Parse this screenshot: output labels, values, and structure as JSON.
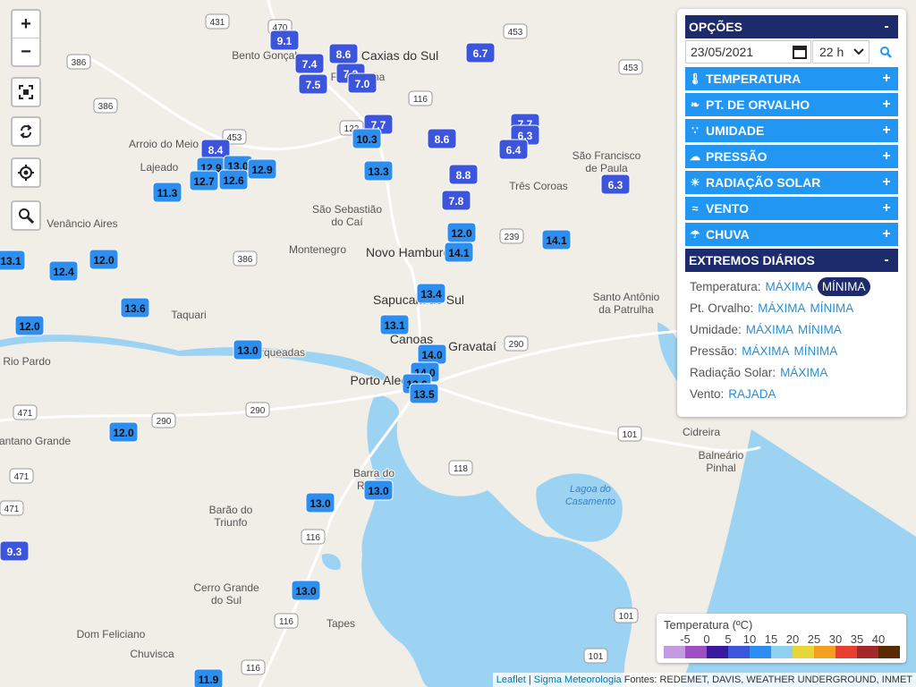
{
  "zoom": {
    "in": "+",
    "out": "−"
  },
  "places": [
    [
      "Bento Gonçalves"
    ],
    [
      "Caxias do Sul"
    ],
    [
      "Farroupilha"
    ],
    [
      "Arroio do Meio"
    ],
    [
      "Lajeado"
    ],
    [
      "Venâncio Aires"
    ],
    [
      "São Sebastião",
      "do Caí"
    ],
    [
      "Montenegro"
    ],
    [
      "Novo Hamburgo"
    ],
    [
      "Sapucaia do Sul"
    ],
    [
      "Taquari"
    ],
    [
      "Canoas"
    ],
    [
      "Gravataí"
    ],
    [
      "Porto Alegre"
    ],
    [
      "Charqueadas"
    ],
    [
      "Rio Pardo"
    ],
    [
      "Pantano Grande"
    ],
    [
      "Barra do",
      "Ribeiro"
    ],
    [
      "Barão do",
      "Triunfo"
    ],
    [
      "Cerro Grande",
      "do Sul"
    ],
    [
      "Tapes"
    ],
    [
      "Dom Feliciano"
    ],
    [
      "Chuvisca"
    ],
    [
      "Três Coroas"
    ],
    [
      "São Francisco",
      "de Paula"
    ],
    [
      "Santo Antônio",
      "da Patrulha"
    ],
    [
      "Cidreira"
    ],
    [
      "Balneário",
      "Pinhal"
    ]
  ],
  "water_labels": [
    [
      "Lagoa do",
      "Casamento"
    ]
  ],
  "roads": [
    "470",
    "431",
    "453",
    "453",
    "453",
    "386",
    "386",
    "386",
    "116",
    "116",
    "116",
    "116",
    "122",
    "239",
    "290",
    "290",
    "290",
    "471",
    "471",
    "471",
    "118",
    "101",
    "101",
    "101"
  ],
  "stations": [
    "9.1",
    "7.4",
    "8.6",
    "7.5",
    "7.3",
    "7.0",
    "6.7",
    "7.7",
    "10.3",
    "8.6",
    "7.7",
    "6.3",
    "6.4",
    "8.4",
    "12.9",
    "13.0",
    "12.9",
    "12.7",
    "12.6",
    "13.3",
    "8.8",
    "11.3",
    "7.8",
    "6.3",
    "12.0",
    "14.1",
    "14.1",
    "13.1",
    "12.0",
    "12.4",
    "13.4",
    "13.6",
    "13.1",
    "12.0",
    "13.0",
    "14.0",
    "14.0",
    "13.6",
    "13.5",
    "12.0",
    "13.0",
    "13.0",
    "9.3",
    "13.0",
    "11.9"
  ],
  "panel": {
    "title": "OPÇÕES",
    "collapse": "-",
    "date": "23/05/2021",
    "hour": "22 h",
    "expand": "+",
    "sections": [
      "TEMPERATURA",
      "PT. DE ORVALHO",
      "UMIDADE",
      "PRESSÃO",
      "RADIAÇÃO SOLAR",
      "VENTO",
      "CHUVA"
    ],
    "extremes": {
      "title": "EXTREMOS DIÁRIOS",
      "rows": [
        {
          "label": "Temperatura:",
          "links": [
            "MÁXIMA",
            "MÍNIMA"
          ]
        },
        {
          "label": "Pt. Orvalho:",
          "links": [
            "MÁXIMA",
            "MÍNIMA"
          ]
        },
        {
          "label": "Umidade:",
          "links": [
            "MÁXIMA",
            "MÍNIMA"
          ]
        },
        {
          "label": "Pressão:",
          "links": [
            "MÁXIMA",
            "MÍNIMA"
          ]
        },
        {
          "label": "Radiação Solar:",
          "links": [
            "MÁXIMA"
          ]
        },
        {
          "label": "Vento:",
          "links": [
            "RAJADA"
          ]
        }
      ]
    }
  },
  "legend": {
    "title": "Temperatura (ºC)",
    "ticks": [
      -5,
      0,
      5,
      10,
      15,
      20,
      25,
      30,
      35,
      40
    ],
    "colors": [
      "#c39be0",
      "#a04fc0",
      "#3a1a9c",
      "#3d55dd",
      "#2e8ef0",
      "#8fd0ef",
      "#e6d63a",
      "#f2a020",
      "#e84030",
      "#a52828",
      "#5a2a00"
    ]
  },
  "attribution": {
    "leaflet": "Leaflet",
    "sep": "|",
    "brand": "Sigma Meteorologia",
    "sources": "Fontes: REDEMET, DAVIS, WEATHER UNDERGROUND, INMET"
  }
}
